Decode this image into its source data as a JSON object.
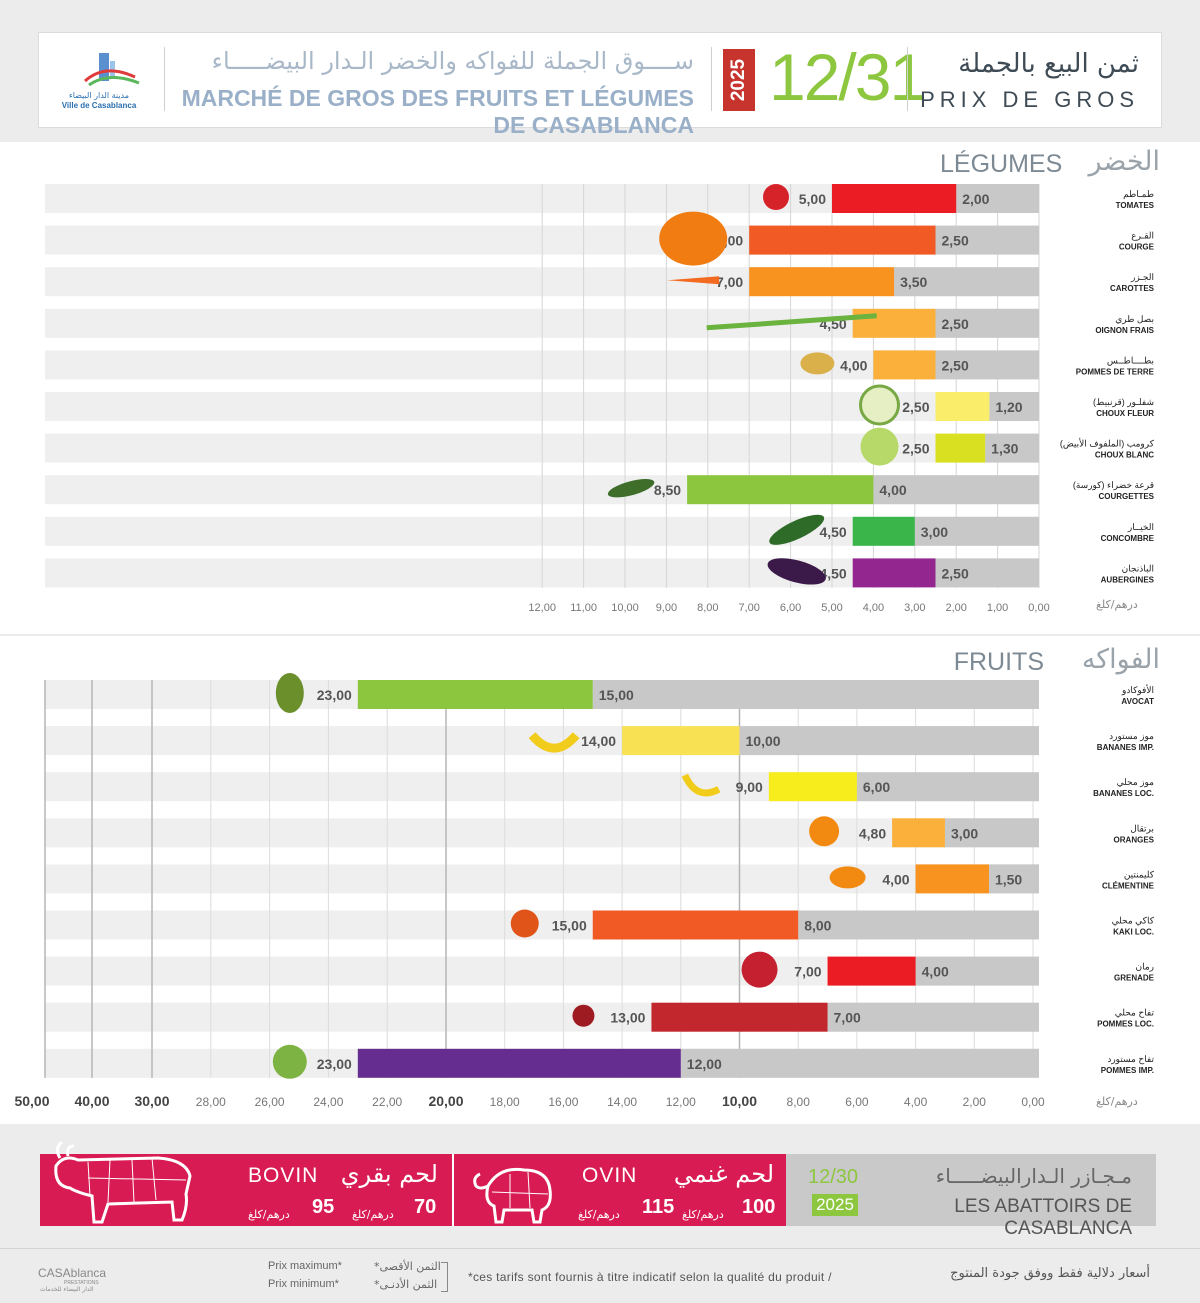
{
  "header": {
    "logo_ar": "مدينة الدار البيضاء",
    "logo_fr": "Ville de Casablanca",
    "market_ar": "ســــوق الجملة للفواكه والخضر الـدار البيضـــــاء",
    "market_fr": "MARCHÉ DE GROS DES FRUITS ET LÉGUMES DE CASABLANCA",
    "year": "2025",
    "date": "12/31",
    "price_ar": "ثمن البيع بالجملة",
    "price_fr": "PRIX DE GROS"
  },
  "sections": {
    "vegetables": {
      "fr": "LÉGUMES",
      "ar": "الخضر",
      "unit": "درهم/كلغ"
    },
    "fruits": {
      "fr": "FRUITS",
      "ar": "الفواكه",
      "unit": "درهم/كلغ"
    }
  },
  "chart_data": [
    {
      "type": "bar",
      "orientation": "horizontal",
      "xlim": [
        12,
        0
      ],
      "x_ticks": [
        "12,00",
        "11,00",
        "10,00",
        "9,00",
        "8,00",
        "7,00",
        "6,00",
        "5,00",
        "4,00",
        "3,00",
        "2,00",
        "1,00",
        "0,00"
      ],
      "series": [
        {
          "name": "Prix minimum*",
          "values": [
            2.0,
            2.5,
            3.5,
            2.5,
            2.5,
            1.2,
            1.3,
            4.0,
            3.0,
            2.5
          ]
        },
        {
          "name": "Prix maximum*",
          "values": [
            5.0,
            7.0,
            7.0,
            4.5,
            4.0,
            2.5,
            2.5,
            8.5,
            4.5,
            4.5
          ]
        }
      ],
      "categories": [
        {
          "ar": "طمـاطم",
          "fr": "TOMATES",
          "min": "2,00",
          "max": "5,00",
          "color": "#ec1c24",
          "icon": "tomato-icon"
        },
        {
          "ar": "القـرع",
          "fr": "COURGE",
          "min": "2,50",
          "max": "7,00",
          "color": "#f15a24",
          "icon": "pumpkin-icon"
        },
        {
          "ar": "الجـزر",
          "fr": "CAROTTES",
          "min": "3,50",
          "max": "7,00",
          "color": "#f7931e",
          "icon": "carrot-icon"
        },
        {
          "ar": "بصل طري",
          "fr": "OIGNON FRAIS",
          "min": "2,50",
          "max": "4,50",
          "color": "#fbb03b",
          "icon": "spring-onion-icon"
        },
        {
          "ar": "بطــــاطــس",
          "fr": "POMMES DE TERRE",
          "min": "2,50",
          "max": "4,00",
          "color": "#fbb03b",
          "icon": "potato-icon"
        },
        {
          "ar": "شفلـور (قرنبيط)",
          "fr": "CHOUX FLEUR",
          "min": "1,20",
          "max": "2,50",
          "color": "#f9ed69",
          "icon": "cauliflower-icon"
        },
        {
          "ar": "كرومب (الملفوف الأبيض)",
          "fr": "CHOUX BLANC",
          "min": "1,30",
          "max": "2,50",
          "color": "#d9e021",
          "icon": "cabbage-icon"
        },
        {
          "ar": "قرعة خضراء (كورسة)",
          "fr": "COURGETTES",
          "min": "4,00",
          "max": "8,50",
          "color": "#8cc63f",
          "icon": "zucchini-icon"
        },
        {
          "ar": "الخيــار",
          "fr": "CONCOMBRE",
          "min": "3,00",
          "max": "4,50",
          "color": "#39b54a",
          "icon": "cucumber-icon"
        },
        {
          "ar": "الباذنجان",
          "fr": "AUBERGINES",
          "min": "2,50",
          "max": "4,50",
          "color": "#93278f",
          "icon": "eggplant-icon"
        }
      ]
    },
    {
      "type": "bar",
      "orientation": "horizontal",
      "scale": "piecewise: 0–20 linear, 20–50 compressed",
      "xlim": [
        50,
        0
      ],
      "x_ticks": [
        "50,00",
        "40,00",
        "30,00",
        "28,00",
        "26,00",
        "24,00",
        "22,00",
        "20,00",
        "18,00",
        "16,00",
        "14,00",
        "12,00",
        "10,00",
        "8,00",
        "6,00",
        "4,00",
        "2,00",
        "0,00"
      ],
      "series": [
        {
          "name": "Prix minimum*",
          "values": [
            15.0,
            10.0,
            6.0,
            3.0,
            1.5,
            8.0,
            4.0,
            7.0,
            12.0
          ]
        },
        {
          "name": "Prix maximum*",
          "values": [
            23.0,
            14.0,
            9.0,
            4.8,
            4.0,
            15.0,
            7.0,
            13.0,
            23.0
          ]
        }
      ],
      "categories": [
        {
          "ar": "الأفوكادو",
          "fr": "AVOCAT",
          "min": "15,00",
          "max": "23,00",
          "color": "#8cc63f",
          "icon": "avocado-icon"
        },
        {
          "ar": "موز مستورد",
          "fr": "BANANES IMP.",
          "min": "10,00",
          "max": "14,00",
          "color": "#f9e154",
          "icon": "bananas-icon"
        },
        {
          "ar": "موز محلي",
          "fr": "BANANES LOC.",
          "min": "6,00",
          "max": "9,00",
          "color": "#f7ec1c",
          "icon": "banana-icon"
        },
        {
          "ar": "برتقال",
          "fr": "ORANGES",
          "min": "3,00",
          "max": "4,80",
          "color": "#fbb03b",
          "icon": "orange-icon"
        },
        {
          "ar": "كليمنتين",
          "fr": "CLÉMENTINE",
          "min": "1,50",
          "max": "4,00",
          "color": "#f7931e",
          "icon": "clementine-icon"
        },
        {
          "ar": "كاكي محلي",
          "fr": "KAKI LOC.",
          "min": "8,00",
          "max": "15,00",
          "color": "#f15a24",
          "icon": "kaki-icon"
        },
        {
          "ar": "رمان",
          "fr": "GRENADE",
          "min": "4,00",
          "max": "7,00",
          "color": "#ec1c24",
          "icon": "pomegranate-icon"
        },
        {
          "ar": "تفاح محلي",
          "fr": "POMMES LOC.",
          "min": "7,00",
          "max": "13,00",
          "color": "#c1272d",
          "icon": "apple-loc-icon"
        },
        {
          "ar": "تفاح مستورد",
          "fr": "POMMES IMP.",
          "min": "12,00",
          "max": "23,00",
          "color": "#662d91",
          "icon": "apples-imp-icon"
        }
      ]
    }
  ],
  "meat": {
    "bovin": {
      "fr": "BOVIN",
      "ar": "لحم بقري",
      "min": "70",
      "max": "95",
      "unit": "درهم/كلغ"
    },
    "ovin": {
      "fr": "OVIN",
      "ar": "لحم غنمي",
      "min": "100",
      "max": "115",
      "unit": "درهم/كلغ"
    },
    "date": "12/30",
    "year": "2025",
    "abattoir_ar": "مـجـازر الـدارالبيضـــــاء",
    "abattoir_fr": "LES ABATTOIRS DE CASABLANCA"
  },
  "footer": {
    "brand": "CASAblanca",
    "brand_sub": "PRESTATIONS",
    "brand_ar": "الدار البيضاء للخدمات",
    "legend_max_fr": "Prix maximum*",
    "legend_min_fr": "Prix minimum*",
    "legend_max_ar": "*الثمن الأقصى",
    "legend_min_ar": "*الثمن الأدنـى",
    "note_fr": "*ces tarifs sont fournis à titre indicatif selon la qualité du produit /",
    "note_ar": "أسعار دلالية فقط ووفق جودة المنتوج"
  }
}
